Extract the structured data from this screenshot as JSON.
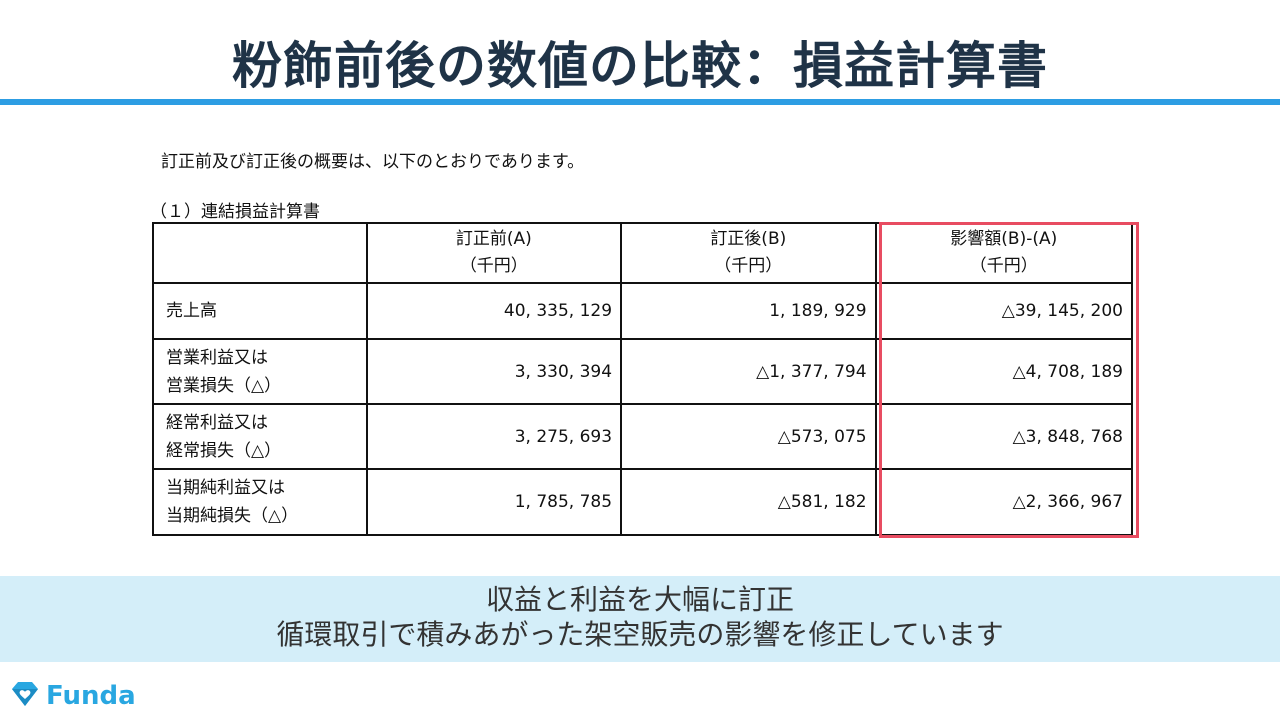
{
  "slide": {
    "title": "粉飾前後の数値の比較：損益計算書"
  },
  "document": {
    "intro": "訂正前及び訂正後の概要は、以下のとおりであります。",
    "caption": "（１）連結損益計算書",
    "headers": {
      "before_line1": "訂正前(A)",
      "before_line2": "（千円）",
      "after_line1": "訂正後(B)",
      "after_line2": "（千円）",
      "impact_line1": "影響額(B)-(A)",
      "impact_line2": "（千円）"
    },
    "rows": [
      {
        "label_line1": "売上高",
        "label_line2": "",
        "before": "40, 335, 129",
        "after": "1, 189, 929",
        "impact": "△39, 145, 200"
      },
      {
        "label_line1": "営業利益又は",
        "label_line2": "営業損失（△）",
        "before": "3, 330, 394",
        "after": "△1, 377, 794",
        "impact": "△4, 708, 189"
      },
      {
        "label_line1": "経常利益又は",
        "label_line2": "経常損失（△）",
        "before": "3, 275, 693",
        "after": "△573, 075",
        "impact": "△3, 848, 768"
      },
      {
        "label_line1": "当期純利益又は",
        "label_line2": "当期純損失（△）",
        "before": "1, 785, 785",
        "after": "△581, 182",
        "impact": "△2, 366, 967"
      }
    ],
    "highlight_color": "#e84c61"
  },
  "banner": {
    "line1": "収益と利益を大幅に訂正",
    "line2": "循環取引で積みあがった架空販売の影響を修正しています"
  },
  "brand": {
    "logo_text": "Funda",
    "logo_icon": "diamond-heart-icon",
    "accent_color": "#2d9de3"
  }
}
